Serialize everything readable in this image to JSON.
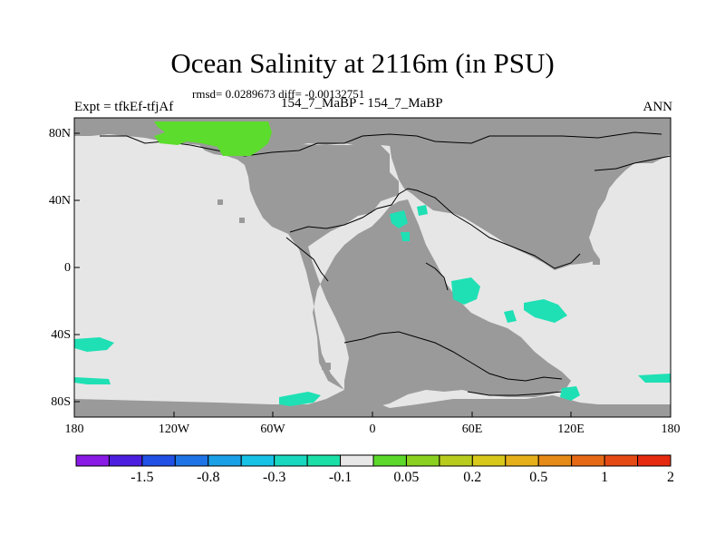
{
  "title": "Ocean Salinity at 2116m (in PSU)",
  "stats_line": "rmsd= 0.0289673 diff= -0.00132751",
  "left_label": "Expt = tfkEf-tfjAf",
  "center_label": "154_7_MaBP - 154_7_MaBP",
  "right_label": "ANN",
  "lat_ticks": [
    "80N",
    "40N",
    "0",
    "40S",
    "80S"
  ],
  "lon_ticks": [
    "180",
    "120W",
    "60W",
    "0",
    "60E",
    "120E",
    "180"
  ],
  "colorbar": {
    "labels": [
      "-1.5",
      "-0.8",
      "-0.3",
      "-0.1",
      "0.05",
      "0.2",
      "0.5",
      "1",
      "2"
    ],
    "colors": [
      "#8a1ae6",
      "#4c1ee0",
      "#2050e6",
      "#1e74e6",
      "#1aa0e6",
      "#16c2e6",
      "#18d8c0",
      "#1ae0a8",
      "#e8e8e8",
      "#5cd82a",
      "#8ad020",
      "#b8cc1e",
      "#d8c81a",
      "#e6b01a",
      "#e68a18",
      "#e66a16",
      "#e64a14",
      "#e62a10"
    ]
  },
  "colors": {
    "ocean": "#e6e6e6",
    "land": "#9a9a9a",
    "positive": "#5cdc2c",
    "negative": "#1ee0b4"
  }
}
